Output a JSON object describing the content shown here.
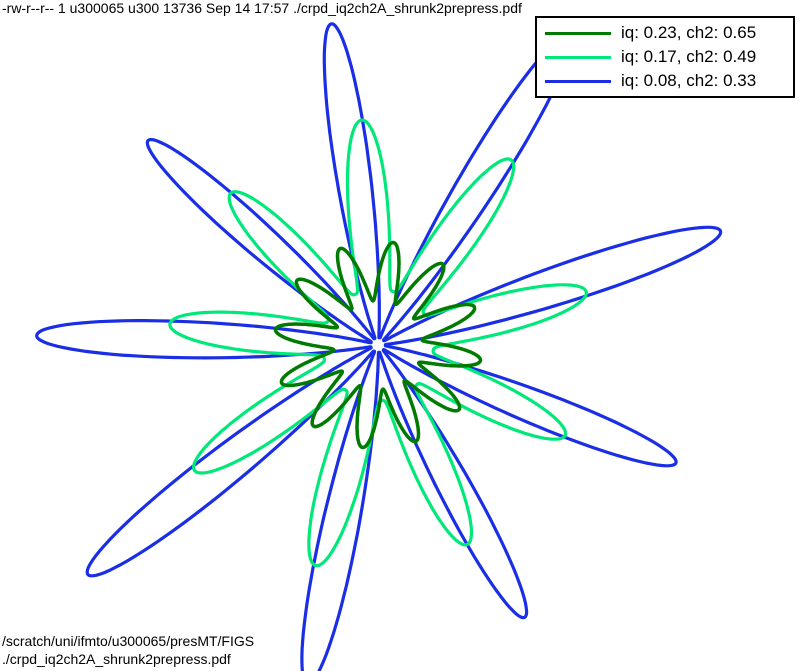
{
  "header": {
    "file_listing": "-rw-r--r-- 1 u300065 u300 13736 Sep 14 17:57 ./crpd_iq2ch2A_shrunk2prepress.pdf"
  },
  "footer": {
    "path_line1": "/scratch/uni/ifmto/u300065/presMT/FIGS",
    "path_line2": "./crpd_iq2ch2A_shrunk2prepress.pdf"
  },
  "chart_data": {
    "type": "line",
    "subtype": "polar-outline",
    "title": "",
    "xlabel": "",
    "ylabel": "",
    "grid": false,
    "axes_visible": false,
    "legend_position": "top-right",
    "series": [
      {
        "name": "iq: 0.23, ch2: 0.65",
        "color": "#007a00",
        "lobes": 12,
        "r_min": 0.12,
        "r_max": 0.28
      },
      {
        "name": "iq: 0.17, ch2: 0.49",
        "color": "#00e87a",
        "lobes": 9,
        "r_min": 0.15,
        "r_max": 0.62
      },
      {
        "name": "iq: 0.08, ch2: 0.33",
        "color": "#1a2ee6",
        "lobes": 9,
        "r_min": 0.02,
        "r_max": 1.0
      }
    ]
  }
}
